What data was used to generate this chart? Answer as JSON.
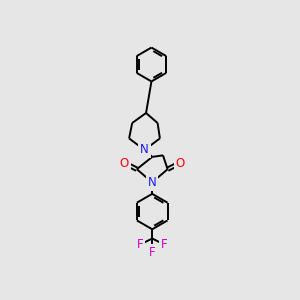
{
  "background_color": "#e6e6e6",
  "atom_colors": {
    "C": "#000000",
    "N": "#1a1aff",
    "O": "#ff0000",
    "F": "#cc00cc"
  },
  "bond_color": "#000000",
  "bond_width": 1.4,
  "figsize": [
    3.0,
    3.0
  ],
  "dpi": 100,
  "font_size": 8.5
}
